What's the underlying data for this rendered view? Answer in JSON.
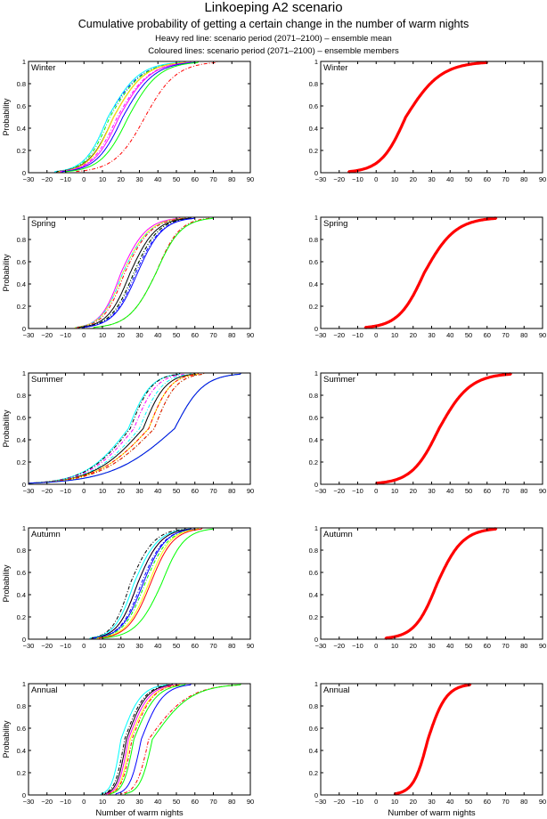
{
  "header": {
    "title": "Linkoeping A2 scenario",
    "subtitle": "Cumulative probability of getting a certain change in the number of warm nights",
    "line1": "Heavy red line: scenario period (2071–2100) – ensemble mean",
    "line2": "Coloured lines: scenario period (2071–2100) – ensemble members"
  },
  "chart_data": {
    "type": "line",
    "xlabel": "Number of warm nights",
    "ylabel": "Probability",
    "xlim": [
      -30,
      90
    ],
    "ylim": [
      0,
      1
    ],
    "xticks": [
      -30,
      -20,
      -10,
      0,
      10,
      20,
      30,
      40,
      50,
      60,
      70,
      80,
      90
    ],
    "yticks": [
      0,
      0.2,
      0.4,
      0.6,
      0.8,
      1
    ],
    "ytick_labels": [
      "0",
      "0.2",
      "0.4",
      "0.6",
      "0.8",
      "1"
    ],
    "grid": false,
    "panels": [
      {
        "season": "Winter",
        "members": [
          {
            "color": "#0000ff",
            "style": "dashdot",
            "median": 13,
            "start": -16,
            "end": 55
          },
          {
            "color": "#00ffff",
            "style": "solid",
            "median": 13,
            "start": -16,
            "end": 52
          },
          {
            "color": "#00ff00",
            "style": "dashdot",
            "median": 14,
            "start": -15,
            "end": 55
          },
          {
            "color": "#000000",
            "style": "solid",
            "median": 16,
            "start": -15,
            "end": 55
          },
          {
            "color": "#ff0000",
            "style": "solid",
            "median": 16,
            "start": -14,
            "end": 55
          },
          {
            "color": "#ffff00",
            "style": "solid",
            "median": 16,
            "start": -14,
            "end": 55
          },
          {
            "color": "#ff00ff",
            "style": "dashdot",
            "median": 18,
            "start": -14,
            "end": 58
          },
          {
            "color": "#ff00ff",
            "style": "solid",
            "median": 19,
            "start": -13,
            "end": 58
          },
          {
            "color": "#0000ff",
            "style": "solid",
            "median": 21,
            "start": -12,
            "end": 60
          },
          {
            "color": "#00ff00",
            "style": "solid",
            "median": 24,
            "start": -10,
            "end": 62
          },
          {
            "color": "#ff0000",
            "style": "dashdot",
            "median": 33,
            "start": -5,
            "end": 72
          }
        ],
        "mean": {
          "color": "#ff0000",
          "median": 16,
          "start": -15,
          "end": 60
        }
      },
      {
        "season": "Spring",
        "members": [
          {
            "color": "#ff00ff",
            "style": "solid",
            "median": 20,
            "start": -5,
            "end": 52
          },
          {
            "color": "#ffff00",
            "style": "solid",
            "median": 21,
            "start": -5,
            "end": 54
          },
          {
            "color": "#00ffff",
            "style": "dashdot",
            "median": 21,
            "start": -5,
            "end": 55
          },
          {
            "color": "#ff0000",
            "style": "dashdot",
            "median": 22,
            "start": -4,
            "end": 55
          },
          {
            "color": "#000000",
            "style": "solid",
            "median": 25,
            "start": -3,
            "end": 57
          },
          {
            "color": "#00ff00",
            "style": "dashdot",
            "median": 27,
            "start": -2,
            "end": 58
          },
          {
            "color": "#000000",
            "style": "dashdot",
            "median": 27,
            "start": -2,
            "end": 58
          },
          {
            "color": "#0000ff",
            "style": "dashdot",
            "median": 28,
            "start": -1,
            "end": 60
          },
          {
            "color": "#0000ff",
            "style": "solid",
            "median": 29,
            "start": -1,
            "end": 60
          },
          {
            "color": "#ff0000",
            "style": "dashdot",
            "median": 39,
            "start": 5,
            "end": 68
          },
          {
            "color": "#00ff00",
            "style": "solid",
            "median": 39,
            "start": 5,
            "end": 70
          }
        ],
        "mean": {
          "color": "#ff0000",
          "median": 26,
          "start": -6,
          "end": 65
        }
      },
      {
        "season": "Summer",
        "members": [
          {
            "color": "#00ffff",
            "style": "solid",
            "median": 24,
            "start": -30,
            "end": 52
          },
          {
            "color": "#000000",
            "style": "dashdot",
            "median": 25,
            "start": -30,
            "end": 52
          },
          {
            "color": "#ff00ff",
            "style": "dashdot",
            "median": 27,
            "start": -30,
            "end": 55
          },
          {
            "color": "#00ffff",
            "style": "dashdot",
            "median": 30,
            "start": -30,
            "end": 58
          },
          {
            "color": "#000000",
            "style": "solid",
            "median": 32,
            "start": -30,
            "end": 60
          },
          {
            "color": "#ffff00",
            "style": "solid",
            "median": 35,
            "start": -30,
            "end": 62
          },
          {
            "color": "#ff0000",
            "style": "dashdot",
            "median": 35,
            "start": -30,
            "end": 62
          },
          {
            "color": "#00ff00",
            "style": "dashdot",
            "median": 38,
            "start": -30,
            "end": 65
          },
          {
            "color": "#ff0000",
            "style": "dashdot",
            "median": 38,
            "start": -30,
            "end": 65
          },
          {
            "color": "#00ff00",
            "style": "solid",
            "median": 49,
            "start": -30,
            "end": 85
          },
          {
            "color": "#0000ff",
            "style": "solid",
            "median": 49,
            "start": -30,
            "end": 85
          }
        ],
        "mean": {
          "color": "#ff0000",
          "median": 34,
          "start": 0,
          "end": 73
        }
      },
      {
        "season": "Autumn",
        "members": [
          {
            "color": "#000000",
            "style": "dashdot",
            "median": 25,
            "start": 3,
            "end": 55
          },
          {
            "color": "#00ffff",
            "style": "solid",
            "median": 27,
            "start": 3,
            "end": 57
          },
          {
            "color": "#ff00ff",
            "style": "solid",
            "median": 29,
            "start": 4,
            "end": 58
          },
          {
            "color": "#000000",
            "style": "solid",
            "median": 29,
            "start": 4,
            "end": 58
          },
          {
            "color": "#0000ff",
            "style": "dashdot",
            "median": 31,
            "start": 5,
            "end": 60
          },
          {
            "color": "#0000ff",
            "style": "solid",
            "median": 32,
            "start": 5,
            "end": 60
          },
          {
            "color": "#00ff00",
            "style": "dashdot",
            "median": 33,
            "start": 6,
            "end": 62
          },
          {
            "color": "#ffff00",
            "style": "solid",
            "median": 35,
            "start": 7,
            "end": 62
          },
          {
            "color": "#ff0000",
            "style": "solid",
            "median": 36,
            "start": 8,
            "end": 64
          },
          {
            "color": "#00ff00",
            "style": "solid",
            "median": 42,
            "start": 10,
            "end": 70
          }
        ],
        "mean": {
          "color": "#ff0000",
          "median": 33,
          "start": 5,
          "end": 65
        }
      },
      {
        "season": "Annual",
        "members": [
          {
            "color": "#00ffff",
            "style": "solid",
            "median": 20,
            "start": 9,
            "end": 45
          },
          {
            "color": "#000000",
            "style": "dashdot",
            "median": 22,
            "start": 10,
            "end": 47
          },
          {
            "color": "#ff00ff",
            "style": "dashdot",
            "median": 23,
            "start": 11,
            "end": 48
          },
          {
            "color": "#000000",
            "style": "solid",
            "median": 23,
            "start": 11,
            "end": 48
          },
          {
            "color": "#ff00ff",
            "style": "solid",
            "median": 24,
            "start": 12,
            "end": 50
          },
          {
            "color": "#ffff00",
            "style": "solid",
            "median": 25,
            "start": 13,
            "end": 52
          },
          {
            "color": "#ff0000",
            "style": "dashdot",
            "median": 26,
            "start": 13,
            "end": 52
          },
          {
            "color": "#00ff00",
            "style": "solid",
            "median": 27,
            "start": 14,
            "end": 55
          },
          {
            "color": "#0000ff",
            "style": "solid",
            "median": 31,
            "start": 17,
            "end": 58
          },
          {
            "color": "#ff0000",
            "style": "dashdot",
            "median": 35,
            "start": 20,
            "end": 85
          },
          {
            "color": "#00ff00",
            "style": "solid",
            "median": 37,
            "start": 22,
            "end": 85
          }
        ],
        "mean": {
          "color": "#ff0000",
          "median": 28,
          "start": 10,
          "end": 51
        }
      }
    ]
  }
}
